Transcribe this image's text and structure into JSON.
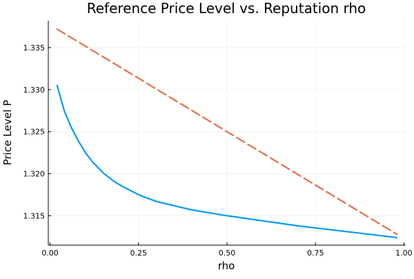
{
  "chart_data": {
    "type": "line",
    "title": "Reference Price Level vs. Reputation rho",
    "xlabel": "rho",
    "ylabel": "Price Level P",
    "xlim": [
      -0.005,
      1.005
    ],
    "ylim": [
      1.3115,
      1.3382
    ],
    "xticks": [
      0.0,
      0.25,
      0.5,
      0.75,
      1.0
    ],
    "xtick_labels": [
      "0.00",
      "0.25",
      "0.50",
      "0.75",
      "1.00"
    ],
    "yticks": [
      1.315,
      1.32,
      1.325,
      1.33,
      1.335
    ],
    "ytick_labels": [
      "1.315",
      "1.320",
      "1.325",
      "1.330",
      "1.335"
    ],
    "grid": true,
    "legend": "none",
    "series": [
      {
        "style": "solid",
        "color": "#009AFA",
        "x": [
          0.02,
          0.04,
          0.06,
          0.08,
          0.1,
          0.12,
          0.15,
          0.18,
          0.2,
          0.25,
          0.3,
          0.35,
          0.4,
          0.5,
          0.6,
          0.7,
          0.8,
          0.9,
          0.98
        ],
        "y": [
          1.3305,
          1.3275,
          1.3255,
          1.3239,
          1.3225,
          1.3214,
          1.3201,
          1.3191,
          1.3186,
          1.3175,
          1.3167,
          1.3162,
          1.3157,
          1.315,
          1.3144,
          1.3138,
          1.3133,
          1.3128,
          1.3124
        ]
      },
      {
        "style": "dashed",
        "color": "#E26F46",
        "x": [
          0.02,
          0.98
        ],
        "y": [
          1.3372,
          1.3128
        ]
      }
    ]
  }
}
